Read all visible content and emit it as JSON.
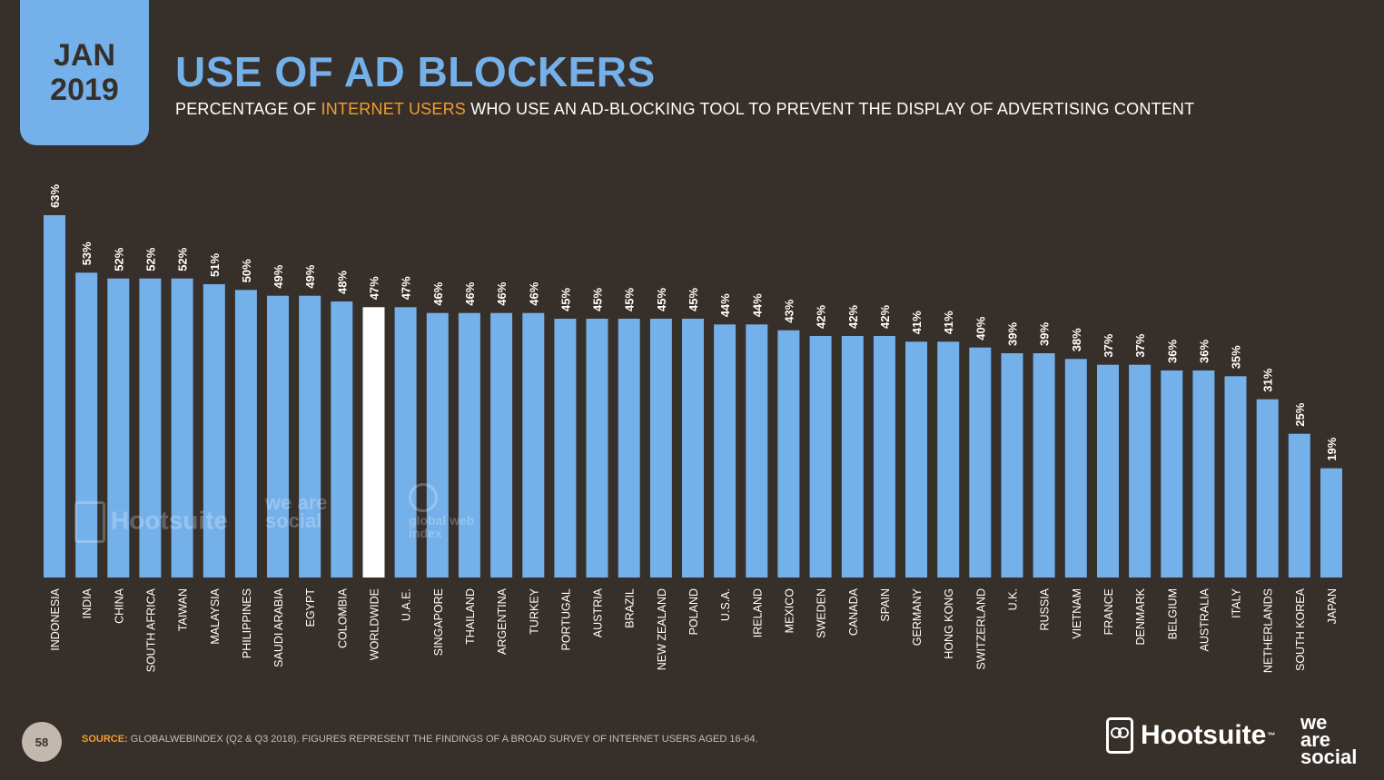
{
  "header": {
    "date_line1": "JAN",
    "date_line2": "2019",
    "title": "USE OF AD BLOCKERS",
    "subtitle_pre": "PERCENTAGE OF ",
    "subtitle_highlight": "INTERNET USERS",
    "subtitle_post": " WHO USE AN AD-BLOCKING TOOL TO PREVENT THE DISPLAY OF ADVERTISING CONTENT"
  },
  "colors": {
    "background": "#362f2a",
    "bar": "#74b0ea",
    "bar_highlight": "#ffffff",
    "accent": "#f39c2e",
    "text": "#ffffff"
  },
  "chart_data": {
    "type": "bar",
    "categories": [
      "INDONESIA",
      "INDIA",
      "CHINA",
      "SOUTH AFRICA",
      "TAIWAN",
      "MALAYSIA",
      "PHILIPPINES",
      "SAUDI ARABIA",
      "EGYPT",
      "COLOMBIA",
      "WORLDWIDE",
      "U.A.E.",
      "SINGAPORE",
      "THAILAND",
      "ARGENTINA",
      "TURKEY",
      "PORTUGAL",
      "AUSTRIA",
      "BRAZIL",
      "NEW ZEALAND",
      "POLAND",
      "U.S.A.",
      "IRELAND",
      "MEXICO",
      "SWEDEN",
      "CANADA",
      "SPAIN",
      "GERMANY",
      "HONG KONG",
      "SWITZERLAND",
      "U.K.",
      "RUSSIA",
      "VIETNAM",
      "FRANCE",
      "DENMARK",
      "BELGIUM",
      "AUSTRALIA",
      "ITALY",
      "NETHERLANDS",
      "SOUTH KOREA",
      "JAPAN"
    ],
    "values": [
      63,
      53,
      52,
      52,
      52,
      51,
      50,
      49,
      49,
      48,
      47,
      47,
      46,
      46,
      46,
      46,
      45,
      45,
      45,
      45,
      45,
      44,
      44,
      43,
      42,
      42,
      42,
      41,
      41,
      40,
      39,
      39,
      38,
      37,
      37,
      36,
      36,
      35,
      31,
      25,
      19
    ],
    "value_labels": [
      "63%",
      "53%",
      "52%",
      "52%",
      "52%",
      "51%",
      "50%",
      "49%",
      "49%",
      "48%",
      "47%",
      "47%",
      "46%",
      "46%",
      "46%",
      "46%",
      "45%",
      "45%",
      "45%",
      "45%",
      "45%",
      "44%",
      "44%",
      "43%",
      "42%",
      "42%",
      "42%",
      "41%",
      "41%",
      "40%",
      "39%",
      "39%",
      "38%",
      "37%",
      "37%",
      "36%",
      "36%",
      "35%",
      "31%",
      "25%",
      "19%"
    ],
    "highlight_category": "WORLDWIDE",
    "ylim": [
      0,
      63
    ],
    "grid": false,
    "legend": "none"
  },
  "watermarks": {
    "hootsuite": "Hootsuite",
    "social": "we are social",
    "gwi": "global web index"
  },
  "footer": {
    "page_number": "58",
    "source_label": "SOURCE:",
    "source_text": " GLOBALWEBINDEX (Q2 & Q3 2018). FIGURES REPRESENT THE FINDINGS OF A BROAD SURVEY OF INTERNET USERS AGED 16-64.",
    "logo_hootsuite": "Hootsuite",
    "logo_tm": "™",
    "logo_social_1": "we",
    "logo_social_2": "are",
    "logo_social_3": "social"
  }
}
